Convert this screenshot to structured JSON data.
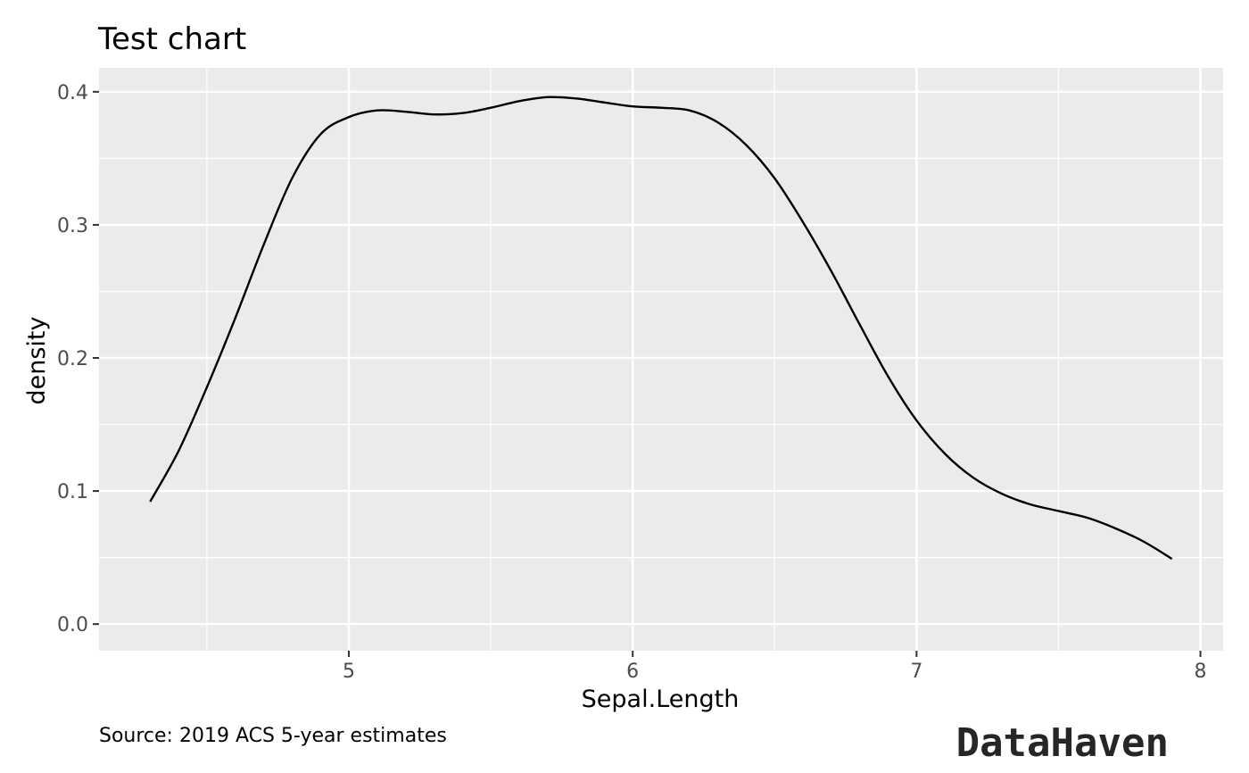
{
  "chart_data": {
    "type": "line",
    "title": "Test chart",
    "xlabel": "Sepal.Length",
    "ylabel": "density",
    "caption": "Source: 2019 ACS 5-year estimates",
    "logo_text": "DataHaven",
    "xlim": [
      4.12,
      8.08
    ],
    "ylim": [
      -0.02,
      0.418
    ],
    "x_ticks": [
      5,
      6,
      7,
      8
    ],
    "x_tick_labels": [
      "5",
      "6",
      "7",
      "8"
    ],
    "x_minor": [
      4.5,
      5.5,
      6.5,
      7.5
    ],
    "y_ticks": [
      0.0,
      0.1,
      0.2,
      0.3,
      0.4
    ],
    "y_tick_labels": [
      "0.0",
      "0.1",
      "0.2",
      "0.3",
      "0.4"
    ],
    "y_minor": [
      0.05,
      0.15,
      0.25,
      0.35
    ],
    "grid": true,
    "colors": {
      "panel": "#ebebeb",
      "grid": "#ffffff",
      "line": "#000000",
      "tick_text": "#4d4d4d",
      "tick_mark": "#333333"
    },
    "series": [
      {
        "name": "density",
        "x": [
          4.3,
          4.4,
          4.5,
          4.6,
          4.7,
          4.8,
          4.9,
          5.0,
          5.1,
          5.2,
          5.3,
          5.4,
          5.5,
          5.6,
          5.7,
          5.8,
          5.9,
          6.0,
          6.1,
          6.2,
          6.3,
          6.4,
          6.5,
          6.6,
          6.7,
          6.8,
          6.9,
          7.0,
          7.1,
          7.2,
          7.3,
          7.4,
          7.5,
          7.6,
          7.7,
          7.8,
          7.9
        ],
        "y": [
          0.092,
          0.13,
          0.178,
          0.23,
          0.285,
          0.335,
          0.368,
          0.381,
          0.386,
          0.385,
          0.383,
          0.384,
          0.388,
          0.393,
          0.396,
          0.395,
          0.392,
          0.389,
          0.388,
          0.386,
          0.377,
          0.36,
          0.335,
          0.302,
          0.265,
          0.225,
          0.186,
          0.153,
          0.128,
          0.11,
          0.098,
          0.09,
          0.085,
          0.08,
          0.072,
          0.062,
          0.049
        ]
      }
    ]
  }
}
